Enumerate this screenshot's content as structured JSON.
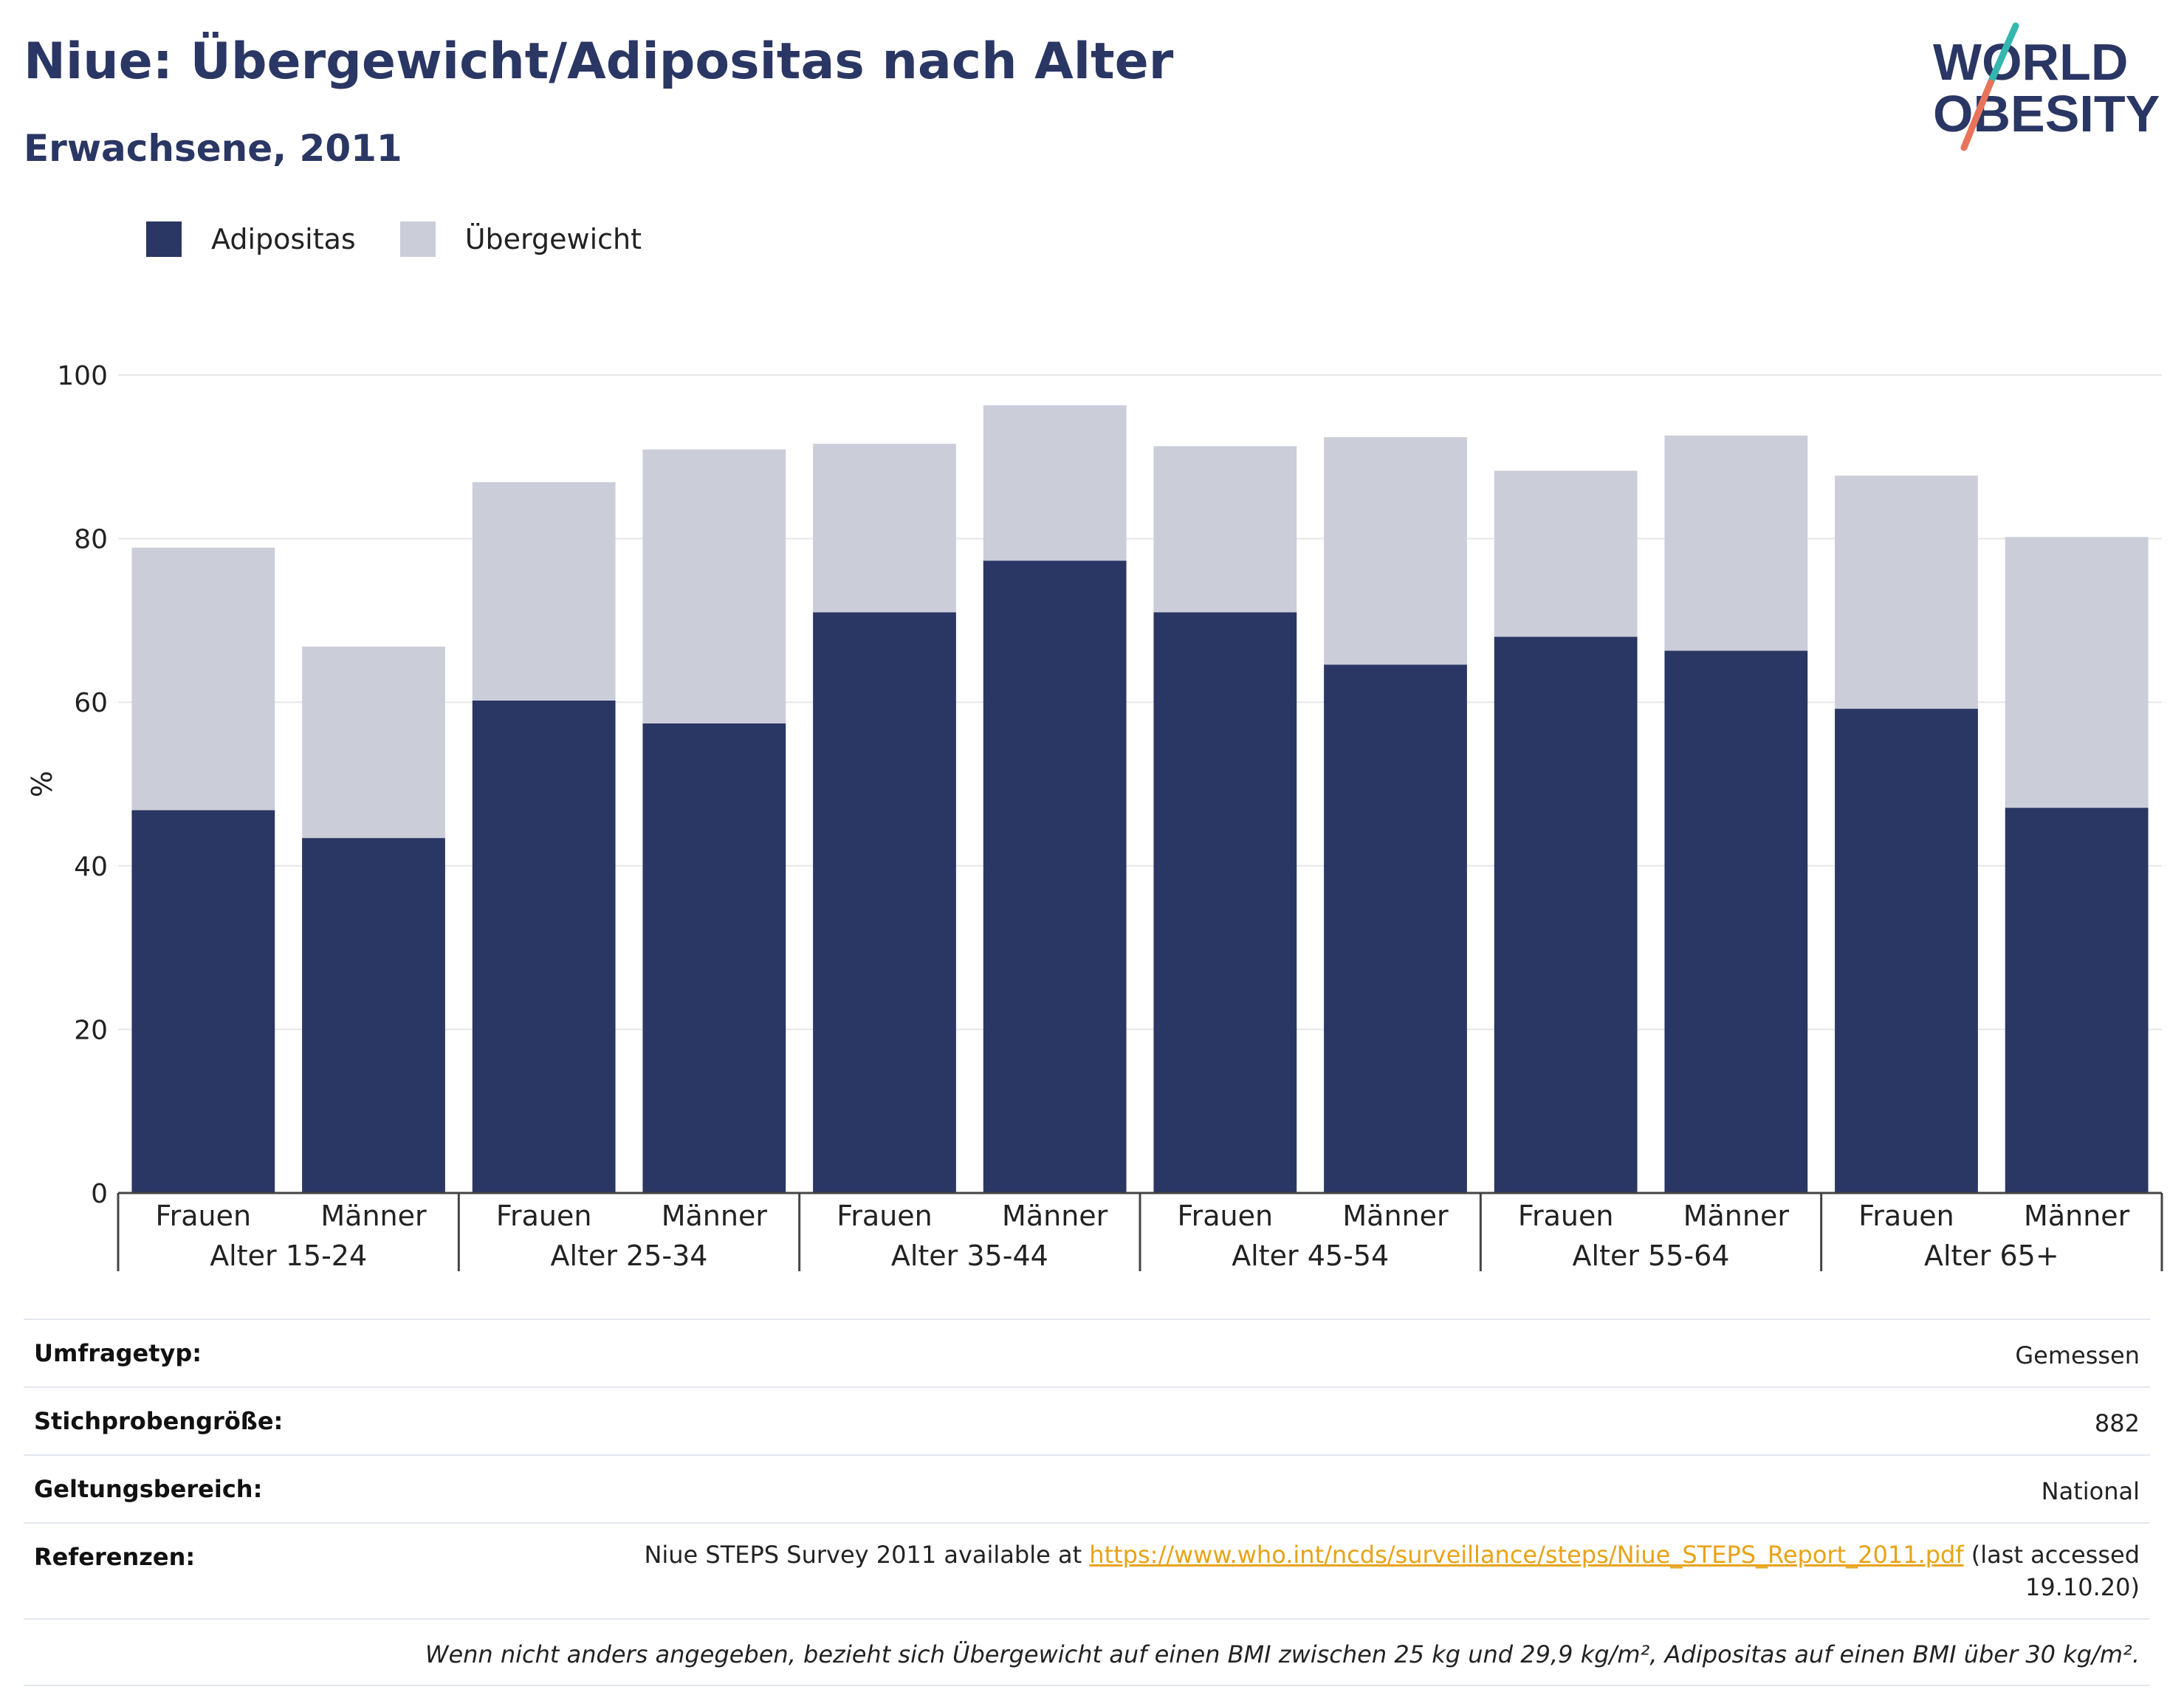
{
  "title": "Niue: Übergewicht/Adipositas nach Alter",
  "subtitle": "Erwachsene, 2011",
  "logo": {
    "line1": "WORLD",
    "line2": "OBESITY"
  },
  "colors": {
    "adipositas": "#2a3663",
    "uebergewicht": "#cbcdd9",
    "title": "#2a3663",
    "link": "#e8a317",
    "logo_teal": "#35b7b0",
    "logo_coral": "#e8735a"
  },
  "legend": [
    {
      "label": "Adipositas",
      "color": "#2a3663"
    },
    {
      "label": "Übergewicht",
      "color": "#cbcdd9"
    }
  ],
  "chart_data": {
    "type": "bar",
    "stacked": true,
    "ylabel": "%",
    "ylim": [
      0,
      100
    ],
    "yticks": [
      0,
      20,
      40,
      60,
      80,
      100
    ],
    "grid": true,
    "legend_position": "top-left",
    "groups": [
      "Alter 15-24",
      "Alter 25-34",
      "Alter 35-44",
      "Alter 45-54",
      "Alter 55-64",
      "Alter 65+"
    ],
    "categories": [
      "Frauen",
      "Männer",
      "Frauen",
      "Männer",
      "Frauen",
      "Männer",
      "Frauen",
      "Männer",
      "Frauen",
      "Männer",
      "Frauen",
      "Männer"
    ],
    "series": [
      {
        "name": "Adipositas",
        "values": [
          46.8,
          43.4,
          60.2,
          57.4,
          71.0,
          77.3,
          71.0,
          64.6,
          68.0,
          66.3,
          59.2,
          47.1
        ]
      },
      {
        "name": "Übergewicht",
        "values": [
          32.1,
          23.4,
          26.7,
          33.5,
          20.6,
          19.0,
          20.3,
          27.8,
          20.3,
          26.3,
          28.5,
          33.1
        ]
      }
    ]
  },
  "info": {
    "survey_type_label": "Umfragetyp:",
    "survey_type_value": "Gemessen",
    "sample_label": "Stichprobengröße:",
    "sample_value": "882",
    "scope_label": "Geltungsbereich:",
    "scope_value": "National",
    "refs_label": "Referenzen:",
    "refs_prefix": "Niue STEPS Survey 2011 available at ",
    "refs_link": "https://www.who.int/ncds/surveillance/steps/Niue_STEPS_Report_2011.pdf",
    "refs_suffix": " (last accessed 19.10.20)",
    "note": "Wenn nicht anders angegeben, bezieht sich Übergewicht auf einen BMI zwischen 25 kg und 29,9 kg/m², Adipositas auf einen BMI über 30 kg/m²."
  }
}
